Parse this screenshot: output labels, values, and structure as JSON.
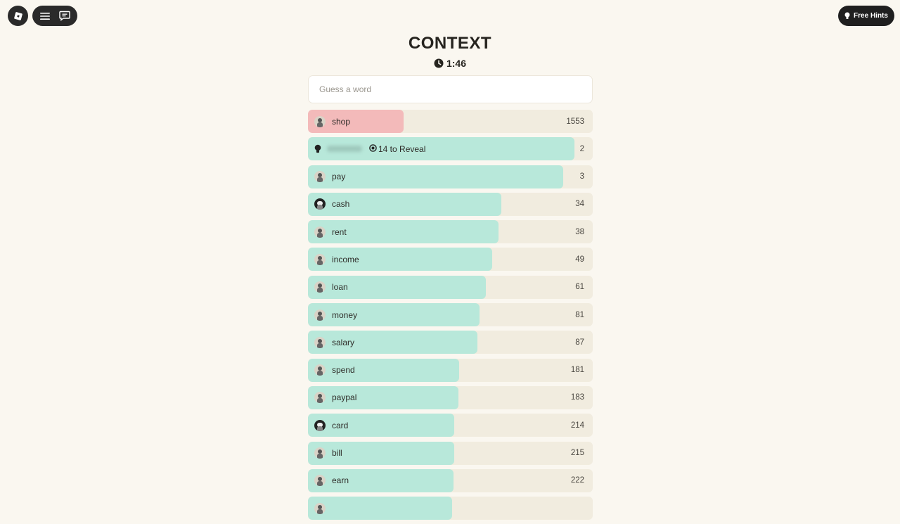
{
  "app": {
    "title": "CONTEXT",
    "timer": "1:46"
  },
  "topbar": {
    "free_hints_label": "Free Hints"
  },
  "guess": {
    "placeholder": "Guess a word",
    "value": ""
  },
  "hint_row": {
    "cost": "14 to Reveal",
    "rank": "2",
    "fill_fraction": 0.935
  },
  "colors": {
    "correct_fill": "#b8e8da",
    "far_fill": "#f3baba",
    "track": "#f1ecdf",
    "background": "#faf7f0"
  },
  "guesses": [
    {
      "word": "shop",
      "rank": "1553",
      "fill_fraction": 0.335,
      "status": "far",
      "avatar": "default"
    },
    {
      "word": "pay",
      "rank": "3",
      "fill_fraction": 0.897,
      "status": "close",
      "avatar": "default"
    },
    {
      "word": "cash",
      "rank": "34",
      "fill_fraction": 0.678,
      "status": "close",
      "avatar": "dark"
    },
    {
      "word": "rent",
      "rank": "38",
      "fill_fraction": 0.668,
      "status": "close",
      "avatar": "default"
    },
    {
      "word": "income",
      "rank": "49",
      "fill_fraction": 0.646,
      "status": "close",
      "avatar": "default"
    },
    {
      "word": "loan",
      "rank": "61",
      "fill_fraction": 0.625,
      "status": "close",
      "avatar": "default"
    },
    {
      "word": "money",
      "rank": "81",
      "fill_fraction": 0.602,
      "status": "close",
      "avatar": "default"
    },
    {
      "word": "salary",
      "rank": "87",
      "fill_fraction": 0.595,
      "status": "close",
      "avatar": "default"
    },
    {
      "word": "spend",
      "rank": "181",
      "fill_fraction": 0.53,
      "status": "close",
      "avatar": "default"
    },
    {
      "word": "paypal",
      "rank": "183",
      "fill_fraction": 0.528,
      "status": "close",
      "avatar": "default"
    },
    {
      "word": "card",
      "rank": "214",
      "fill_fraction": 0.514,
      "status": "close",
      "avatar": "dark"
    },
    {
      "word": "bill",
      "rank": "215",
      "fill_fraction": 0.514,
      "status": "close",
      "avatar": "default"
    },
    {
      "word": "earn",
      "rank": "222",
      "fill_fraction": 0.511,
      "status": "close",
      "avatar": "default"
    },
    {
      "word": "",
      "rank": "",
      "fill_fraction": 0.506,
      "status": "close",
      "avatar": "default"
    }
  ]
}
